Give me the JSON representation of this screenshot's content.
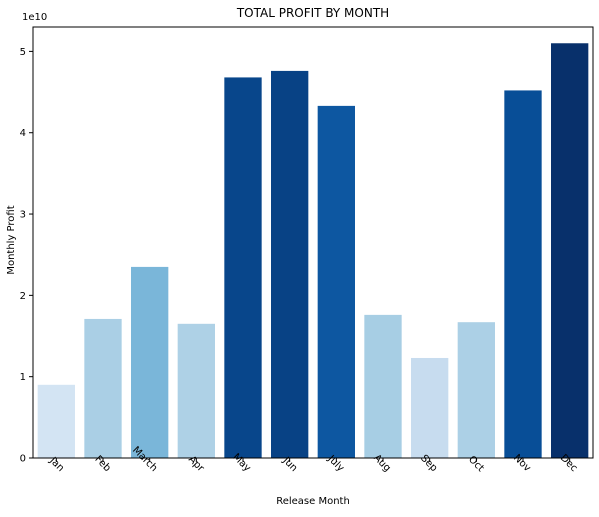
{
  "chart_data": {
    "type": "bar",
    "title": "TOTAL PROFIT BY MONTH",
    "xlabel": "Release Month",
    "ylabel": "Monthly Profit",
    "y_offset_label": "1e10",
    "categories": [
      "Jan",
      "Feb",
      "March",
      "Apr",
      "May",
      "Jun",
      "July",
      "Aug",
      "Sep",
      "Oct",
      "Nov",
      "Dec"
    ],
    "values": [
      0.9,
      1.71,
      2.35,
      1.65,
      4.68,
      4.76,
      4.33,
      1.76,
      1.23,
      1.67,
      4.52,
      5.1
    ],
    "value_scale": 10000000000.0,
    "ylim": [
      0,
      5.3
    ],
    "yticks": [
      "0",
      "1",
      "2",
      "3",
      "4",
      "5"
    ],
    "ytick_values": [
      0,
      1,
      2,
      3,
      4,
      5
    ],
    "xtick_rotation_deg": 45,
    "grid": false,
    "legend": "none",
    "colormap": "Blues"
  }
}
